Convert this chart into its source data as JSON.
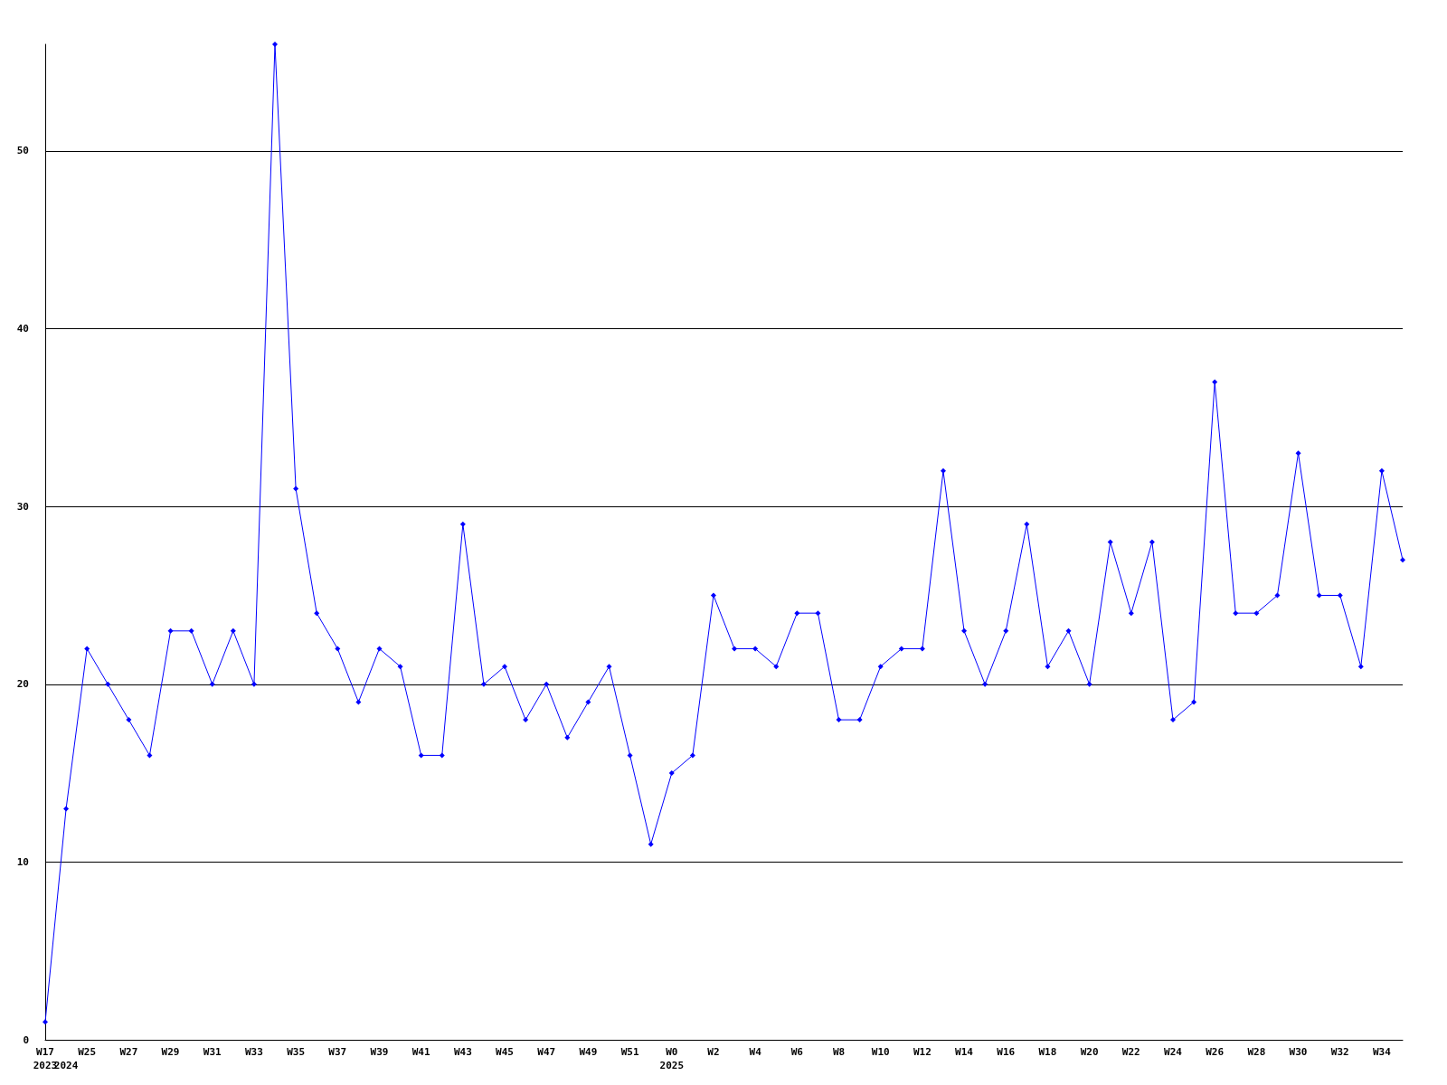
{
  "chart_data": {
    "type": "line",
    "categories": [
      "W17\n2023",
      "\n2024",
      "W25",
      null,
      "W27",
      null,
      "W29",
      null,
      "W31",
      null,
      "W33",
      null,
      "W35",
      null,
      "W37",
      null,
      "W39",
      null,
      "W41",
      null,
      "W43",
      null,
      "W45",
      null,
      "W47",
      null,
      "W49",
      null,
      "W51",
      null,
      "W0\n2025",
      null,
      "W2",
      null,
      "W4",
      null,
      "W6",
      null,
      "W8",
      null,
      "W10",
      null,
      "W12",
      null,
      "W14",
      null,
      "W16",
      null,
      "W18",
      null,
      "W20",
      null,
      "W22",
      null,
      "W24",
      null,
      "W26",
      null,
      "W28",
      null,
      "W30",
      null,
      "W32",
      null,
      "W34",
      null
    ],
    "series": [
      {
        "color": "#0000ff",
        "values": [
          1,
          13,
          22,
          20,
          18,
          16,
          23,
          23,
          20,
          23,
          20,
          56,
          31,
          24,
          22,
          19,
          22,
          21,
          16,
          16,
          29,
          20,
          21,
          18,
          20,
          17,
          19,
          21,
          16,
          11,
          15,
          16,
          25,
          22,
          22,
          21,
          24,
          24,
          18,
          18,
          21,
          22,
          22,
          32,
          23,
          20,
          23,
          29,
          21,
          23,
          20,
          28,
          24,
          28,
          18,
          19,
          37,
          24,
          24,
          25,
          33,
          25,
          25,
          21,
          32,
          27
        ]
      }
    ],
    "ylim": [
      0,
      56
    ],
    "yticks": [
      0,
      10,
      20,
      30,
      40,
      50
    ],
    "grid": "y",
    "marker": "diamond",
    "line_style": "solid"
  }
}
